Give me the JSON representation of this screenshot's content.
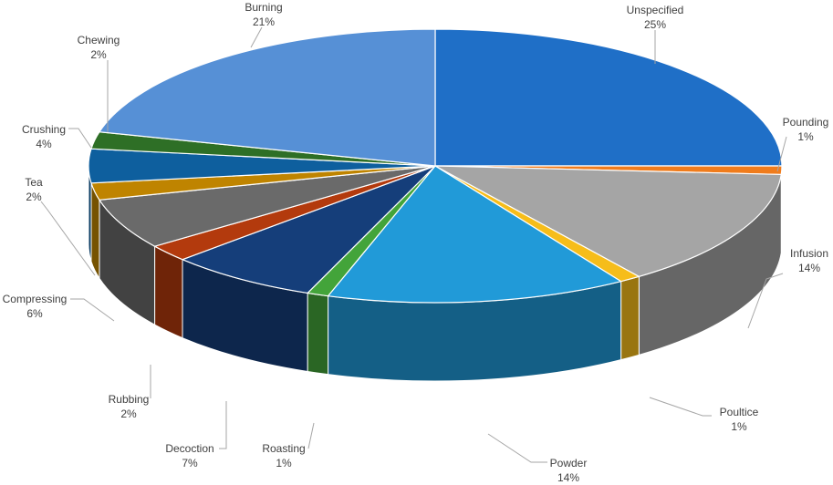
{
  "chart_data": {
    "type": "pie",
    "title": "",
    "style": "3d",
    "slices": [
      {
        "label": "Unspecified",
        "value": 25,
        "value_label": "25%",
        "color": "#1f6fc7"
      },
      {
        "label": "Pounding",
        "value": 1,
        "value_label": "1%",
        "color": "#f07c1c"
      },
      {
        "label": "Infusion",
        "value": 14,
        "value_label": "14%",
        "color": "#a5a5a5"
      },
      {
        "label": "Poultice",
        "value": 1,
        "value_label": "1%",
        "color": "#f6bd1a"
      },
      {
        "label": "Powder",
        "value": 14,
        "value_label": "14%",
        "color": "#219ad8"
      },
      {
        "label": "Roasting",
        "value": 1,
        "value_label": "1%",
        "color": "#43a43a"
      },
      {
        "label": "Decoction",
        "value": 7,
        "value_label": "7%",
        "color": "#153e7a"
      },
      {
        "label": "Rubbing",
        "value": 2,
        "value_label": "2%",
        "color": "#b33a0d"
      },
      {
        "label": "Compressing",
        "value": 6,
        "value_label": "6%",
        "color": "#6a6a6a"
      },
      {
        "label": "Tea",
        "value": 2,
        "value_label": "2%",
        "color": "#bf8400"
      },
      {
        "label": "Crushing",
        "value": 4,
        "value_label": "4%",
        "color": "#0e5f9e"
      },
      {
        "label": "Chewing",
        "value": 2,
        "value_label": "2%",
        "color": "#2e6f26"
      },
      {
        "label": "Burning",
        "value": 21,
        "value_label": "21%",
        "color": "#5690d6"
      }
    ]
  }
}
